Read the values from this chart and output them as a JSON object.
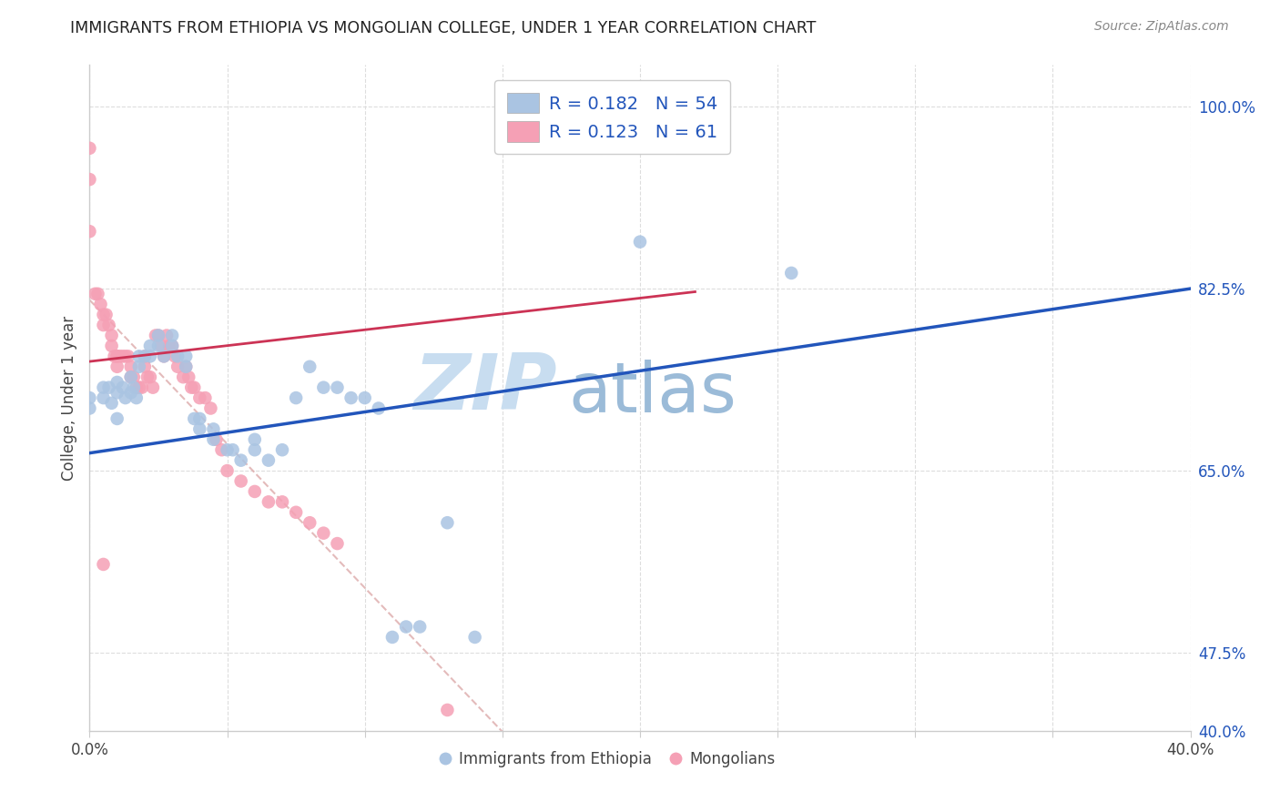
{
  "title": "IMMIGRANTS FROM ETHIOPIA VS MONGOLIAN COLLEGE, UNDER 1 YEAR CORRELATION CHART",
  "source": "Source: ZipAtlas.com",
  "ylabel": "College, Under 1 year",
  "xlim": [
    0.0,
    0.4
  ],
  "ylim": [
    0.4,
    1.04
  ],
  "legend_blue_R": "0.182",
  "legend_blue_N": "54",
  "legend_pink_R": "0.123",
  "legend_pink_N": "61",
  "blue_scatter_x": [
    0.0,
    0.0,
    0.005,
    0.005,
    0.007,
    0.008,
    0.01,
    0.01,
    0.01,
    0.012,
    0.013,
    0.015,
    0.015,
    0.016,
    0.017,
    0.018,
    0.018,
    0.02,
    0.022,
    0.022,
    0.025,
    0.025,
    0.027,
    0.03,
    0.03,
    0.032,
    0.035,
    0.035,
    0.038,
    0.04,
    0.04,
    0.045,
    0.045,
    0.05,
    0.052,
    0.055,
    0.06,
    0.06,
    0.065,
    0.07,
    0.075,
    0.08,
    0.085,
    0.09,
    0.095,
    0.1,
    0.105,
    0.11,
    0.115,
    0.12,
    0.13,
    0.14,
    0.2,
    0.255
  ],
  "blue_scatter_y": [
    0.72,
    0.71,
    0.73,
    0.72,
    0.73,
    0.715,
    0.735,
    0.725,
    0.7,
    0.73,
    0.72,
    0.74,
    0.725,
    0.73,
    0.72,
    0.76,
    0.75,
    0.76,
    0.77,
    0.76,
    0.78,
    0.77,
    0.76,
    0.78,
    0.77,
    0.76,
    0.76,
    0.75,
    0.7,
    0.7,
    0.69,
    0.69,
    0.68,
    0.67,
    0.67,
    0.66,
    0.68,
    0.67,
    0.66,
    0.67,
    0.72,
    0.75,
    0.73,
    0.73,
    0.72,
    0.72,
    0.71,
    0.49,
    0.5,
    0.5,
    0.6,
    0.49,
    0.87,
    0.84
  ],
  "pink_scatter_x": [
    0.0,
    0.0,
    0.0,
    0.002,
    0.003,
    0.004,
    0.005,
    0.005,
    0.006,
    0.007,
    0.008,
    0.008,
    0.009,
    0.01,
    0.01,
    0.01,
    0.011,
    0.012,
    0.013,
    0.014,
    0.015,
    0.015,
    0.016,
    0.017,
    0.018,
    0.019,
    0.02,
    0.02,
    0.021,
    0.022,
    0.023,
    0.024,
    0.025,
    0.026,
    0.027,
    0.028,
    0.029,
    0.03,
    0.031,
    0.032,
    0.034,
    0.035,
    0.036,
    0.037,
    0.038,
    0.04,
    0.042,
    0.044,
    0.046,
    0.048,
    0.05,
    0.055,
    0.06,
    0.065,
    0.07,
    0.075,
    0.08,
    0.085,
    0.09,
    0.13,
    0.005
  ],
  "pink_scatter_y": [
    0.96,
    0.93,
    0.88,
    0.82,
    0.82,
    0.81,
    0.8,
    0.79,
    0.8,
    0.79,
    0.78,
    0.77,
    0.76,
    0.76,
    0.76,
    0.75,
    0.76,
    0.76,
    0.76,
    0.76,
    0.75,
    0.74,
    0.74,
    0.73,
    0.73,
    0.73,
    0.76,
    0.75,
    0.74,
    0.74,
    0.73,
    0.78,
    0.78,
    0.77,
    0.76,
    0.78,
    0.77,
    0.77,
    0.76,
    0.75,
    0.74,
    0.75,
    0.74,
    0.73,
    0.73,
    0.72,
    0.72,
    0.71,
    0.68,
    0.67,
    0.65,
    0.64,
    0.63,
    0.62,
    0.62,
    0.61,
    0.6,
    0.59,
    0.58,
    0.42,
    0.56
  ],
  "blue_color": "#aac4e2",
  "pink_color": "#f5a0b5",
  "blue_line_color": "#2255bb",
  "pink_line_color": "#cc3355",
  "pink_dashed_color": "#ddaaaa",
  "grid_color": "#dddddd",
  "watermark_zip": "ZIP",
  "watermark_atlas": "atlas",
  "watermark_color_zip": "#c8ddf0",
  "watermark_color_atlas": "#9bbbd8",
  "background_color": "#ffffff",
  "right_tick_color": "#2255bb",
  "title_color": "#222222",
  "source_color": "#888888"
}
